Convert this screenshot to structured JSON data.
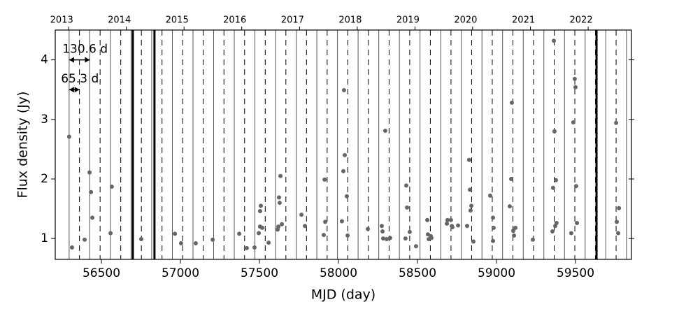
{
  "chart_data": {
    "type": "scatter",
    "x_label": "MJD  (day)",
    "y_label": "Flux density  (Jy)",
    "xlim": [
      56208,
      59854
    ],
    "ylim": [
      0.65,
      4.5
    ],
    "xticks": [
      56500,
      57000,
      57500,
      58000,
      58500,
      59000,
      59500
    ],
    "yticks": [
      1,
      2,
      3,
      4
    ],
    "x2ticks": [
      {
        "value": 56293,
        "label": "2013"
      },
      {
        "value": 56658,
        "label": "2014"
      },
      {
        "value": 57023,
        "label": "2015"
      },
      {
        "value": 57388,
        "label": "2016"
      },
      {
        "value": 57754,
        "label": "2017"
      },
      {
        "value": 58119,
        "label": "2018"
      },
      {
        "value": 58484,
        "label": "2019"
      },
      {
        "value": 58849,
        "label": "2020"
      },
      {
        "value": 59215,
        "label": "2021"
      },
      {
        "value": 59580,
        "label": "2022"
      }
    ],
    "period_lines": {
      "epoch": 56296,
      "period": {
        "value": 130.6,
        "label": "130.6 d"
      },
      "half": {
        "value": 65.3,
        "label": "65.3 d"
      }
    },
    "thick_lines": [
      56699,
      56836,
      59633
    ],
    "color": "#666666",
    "x": [
      56296,
      56314,
      56394,
      56425,
      56434,
      56443,
      56558,
      56566,
      56752,
      56965,
      57004,
      57097,
      57204,
      57372,
      57420,
      57469,
      57496,
      57504,
      57509,
      57504,
      57518,
      57558,
      57615,
      57620,
      57624,
      57628,
      57633,
      57642,
      57766,
      57788,
      57907,
      57912,
      57916,
      58022,
      58031,
      58035,
      58040,
      58053,
      58058,
      58186,
      58274,
      58279,
      58283,
      58296,
      58305,
      58327,
      58424,
      58429,
      58434,
      58451,
      58491,
      58562,
      58566,
      58571,
      58584,
      58588,
      58686,
      58690,
      58712,
      58717,
      58721,
      58757,
      58814,
      58827,
      58832,
      58836,
      58841,
      58854,
      58960,
      58978,
      58982,
      58978,
      59084,
      59093,
      59097,
      59106,
      59111,
      59120,
      59230,
      59354,
      59358,
      59363,
      59367,
      59372,
      59376,
      59380,
      59473,
      59486,
      59495,
      59500,
      59504,
      59509,
      59757,
      59761,
      59770,
      59775
    ],
    "values": [
      2.71,
      0.85,
      0.98,
      2.11,
      1.78,
      1.35,
      1.09,
      1.87,
      0.99,
      1.08,
      0.92,
      0.92,
      0.98,
      1.08,
      0.84,
      0.85,
      1.09,
      1.46,
      1.55,
      1.2,
      1.18,
      0.93,
      1.15,
      1.2,
      1.69,
      1.6,
      2.05,
      1.24,
      1.4,
      1.21,
      1.06,
      1.99,
      1.28,
      1.29,
      2.13,
      3.49,
      2.4,
      1.71,
      1.05,
      1.16,
      1.21,
      1.12,
      1.0,
      2.81,
      0.99,
      1.01,
      1.0,
      1.89,
      1.52,
      1.11,
      0.87,
      1.31,
      1.07,
      0.99,
      1.04,
      1.01,
      1.25,
      1.31,
      1.31,
      1.21,
      1.19,
      1.22,
      1.21,
      2.32,
      1.82,
      1.47,
      1.55,
      0.95,
      1.72,
      1.35,
      1.18,
      0.96,
      1.54,
      2.0,
      3.28,
      1.13,
      1.05,
      1.18,
      0.98,
      1.12,
      1.85,
      4.32,
      2.8,
      1.21,
      1.98,
      1.26,
      1.09,
      2.95,
      3.68,
      3.54,
      1.88,
      1.26,
      2.94,
      1.28,
      1.09,
      1.51
    ]
  }
}
